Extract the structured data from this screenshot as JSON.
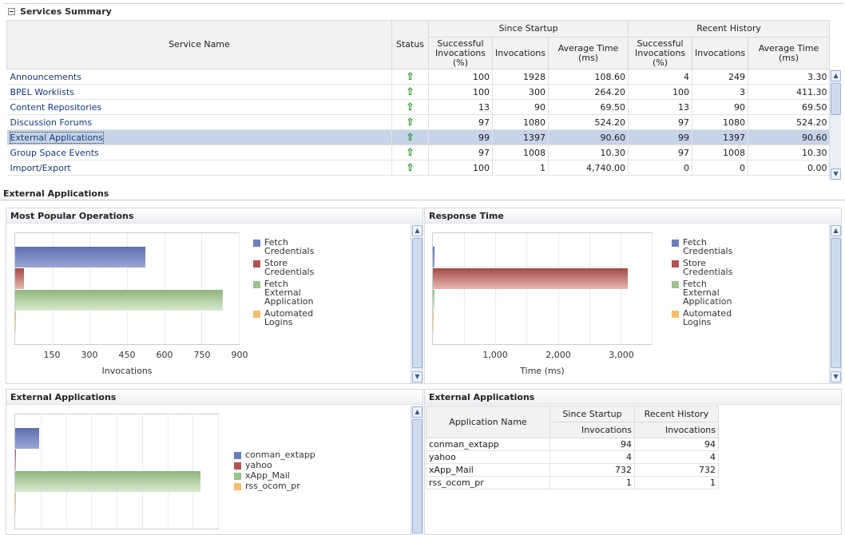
{
  "summary": {
    "title": "Services Summary",
    "headers": {
      "service_name": "Service Name",
      "status": "Status",
      "since_startup": "Since Startup",
      "recent_history": "Recent History",
      "successful_invocations": "Successful Invocations (%)",
      "invocations": "Invocations",
      "average_time": "Average Time (ms)"
    },
    "rows": [
      {
        "name": "Announcements",
        "status": "up",
        "ss_pct": "100",
        "ss_inv": "1928",
        "ss_avg": "108.60",
        "rh_pct": "4",
        "rh_inv": "249",
        "rh_avg": "3.30"
      },
      {
        "name": "BPEL Worklists",
        "status": "up",
        "ss_pct": "100",
        "ss_inv": "300",
        "ss_avg": "264.20",
        "rh_pct": "100",
        "rh_inv": "3",
        "rh_avg": "411.30"
      },
      {
        "name": "Content Repositories",
        "status": "up",
        "ss_pct": "13",
        "ss_inv": "90",
        "ss_avg": "69.50",
        "rh_pct": "13",
        "rh_inv": "90",
        "rh_avg": "69.50"
      },
      {
        "name": "Discussion Forums",
        "status": "up",
        "ss_pct": "97",
        "ss_inv": "1080",
        "ss_avg": "524.20",
        "rh_pct": "97",
        "rh_inv": "1080",
        "rh_avg": "524.20"
      },
      {
        "name": "External Applications",
        "status": "up",
        "ss_pct": "99",
        "ss_inv": "1397",
        "ss_avg": "90.60",
        "rh_pct": "99",
        "rh_inv": "1397",
        "rh_avg": "90.60",
        "selected": true
      },
      {
        "name": "Group Space Events",
        "status": "up",
        "ss_pct": "97",
        "ss_inv": "1008",
        "ss_avg": "10.30",
        "rh_pct": "97",
        "rh_inv": "1008",
        "rh_avg": "10.30"
      },
      {
        "name": "Import/Export",
        "status": "up",
        "ss_pct": "100",
        "ss_inv": "1",
        "ss_avg": "4,740.00",
        "rh_pct": "0",
        "rh_inv": "0",
        "rh_avg": "0.00"
      }
    ],
    "status_arrow": "⇧"
  },
  "section_title": "External Applications",
  "popular_ops": {
    "title": "Most Popular Operations",
    "xlabel": "Invocations",
    "ticks": [
      "150",
      "300",
      "450",
      "600",
      "750",
      "900"
    ],
    "legend": [
      {
        "label": "Fetch Credentials",
        "color": "blue"
      },
      {
        "label": "Store Credentials",
        "color": "red"
      },
      {
        "label": "Fetch External Application",
        "color": "green"
      },
      {
        "label": "Automated Logins",
        "color": "orange"
      }
    ]
  },
  "response_time": {
    "title": "Response Time",
    "xlabel": "Time (ms)",
    "ticks": [
      "1,000",
      "2,000",
      "3,000"
    ],
    "legend": [
      {
        "label": "Fetch Credentials",
        "color": "blue"
      },
      {
        "label": "Store Credentials",
        "color": "red"
      },
      {
        "label": "Fetch External Application",
        "color": "green"
      },
      {
        "label": "Automated Logins",
        "color": "orange"
      }
    ]
  },
  "ext_apps_chart": {
    "title": "External Applications",
    "legend": [
      {
        "label": "conman_extapp",
        "color": "blue"
      },
      {
        "label": "yahoo",
        "color": "red"
      },
      {
        "label": "xApp_Mail",
        "color": "green"
      },
      {
        "label": "rss_ocom_pr",
        "color": "orange"
      }
    ]
  },
  "ext_apps_table": {
    "title": "External Applications",
    "headers": {
      "app_name": "Application Name",
      "since_startup": "Since Startup",
      "recent_history": "Recent History",
      "invocations": "Invocations"
    },
    "rows": [
      {
        "name": "conman_extapp",
        "ss": "94",
        "rh": "94"
      },
      {
        "name": "yahoo",
        "ss": "4",
        "rh": "4"
      },
      {
        "name": "xApp_Mail",
        "ss": "732",
        "rh": "732"
      },
      {
        "name": "rss_ocom_pr",
        "ss": "1",
        "rh": "1"
      }
    ]
  },
  "chart_data": [
    {
      "type": "bar",
      "title": "Most Popular Operations",
      "xlabel": "Invocations",
      "categories": [
        "Fetch Credentials",
        "Store Credentials",
        "Fetch External Application",
        "Automated Logins"
      ],
      "values": [
        523,
        35,
        835,
        2
      ],
      "xlim": [
        0,
        900
      ]
    },
    {
      "type": "bar",
      "title": "Response Time",
      "xlabel": "Time (ms)",
      "categories": [
        "Fetch Credentials",
        "Store Credentials",
        "Fetch External Application",
        "Automated Logins"
      ],
      "values": [
        30,
        3120,
        25,
        5
      ],
      "xlim": [
        0,
        3500
      ]
    },
    {
      "type": "bar",
      "title": "External Applications",
      "categories": [
        "conman_extapp",
        "yahoo",
        "xApp_Mail",
        "rss_ocom_pr"
      ],
      "values": [
        94,
        4,
        732,
        1
      ],
      "xlim": [
        0,
        800
      ]
    }
  ]
}
